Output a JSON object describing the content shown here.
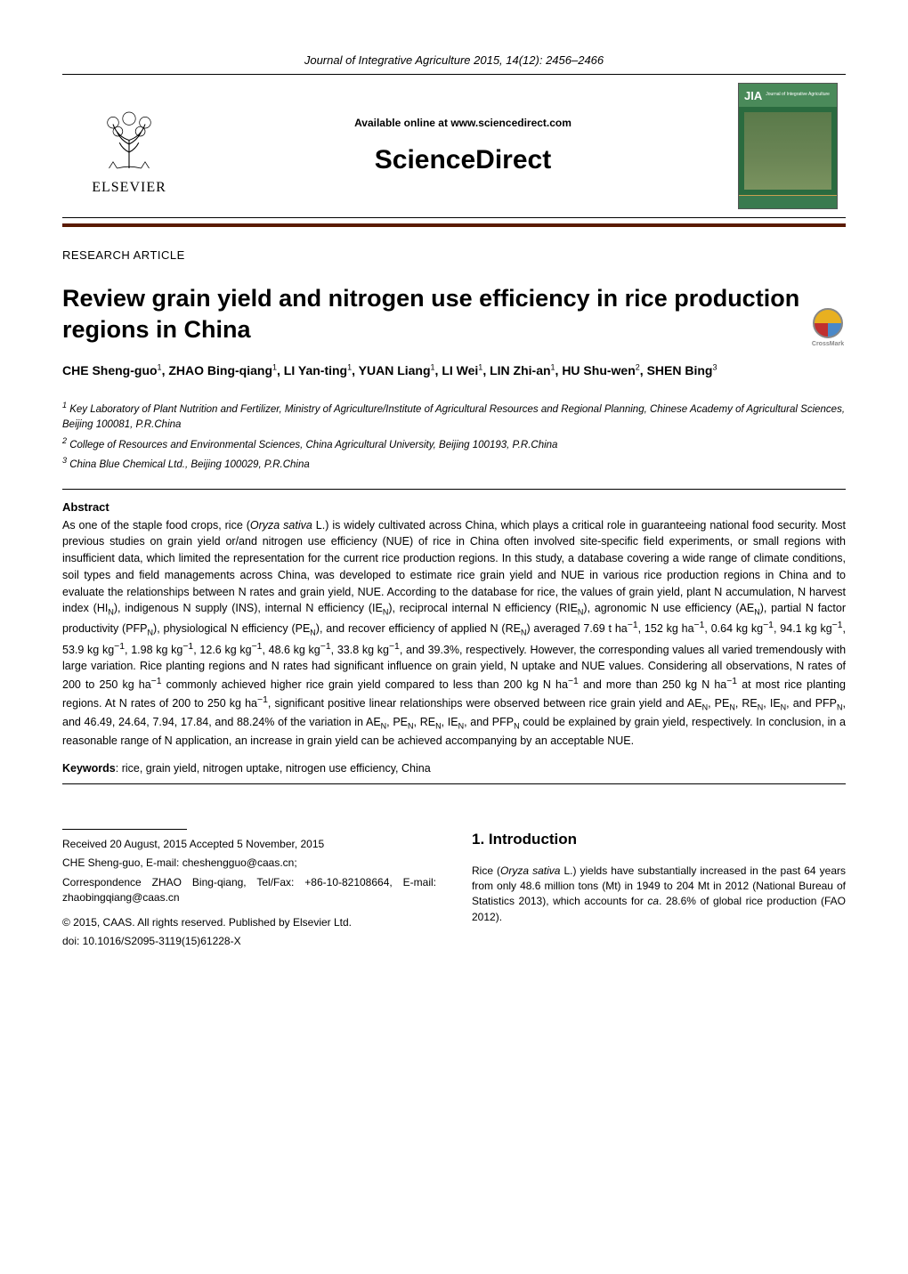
{
  "journal_line": "Journal of Integrative Agriculture  2015, 14(12): 2456–2466",
  "header": {
    "available_online": "Available online at www.sciencedirect.com",
    "sciencedirect": "ScienceDirect",
    "elsevier": "ELSEVIER",
    "jia_logo": "JIA",
    "jia_sub": "Journal of Integrative Agriculture"
  },
  "article_type": "RESEARCH  ARTICLE",
  "title": "Review grain yield and nitrogen use efficiency in rice production regions in China",
  "crossmark_label": "CrossMark",
  "authors_html": "CHE Sheng-guo<sup>1</sup>, ZHAO Bing-qiang<sup>1</sup>, LI Yan-ting<sup>1</sup>, YUAN Liang<sup>1</sup>, LI Wei<sup>1</sup>, LIN Zhi-an<sup>1</sup>, HU Shu-wen<sup>2</sup>, SHEN Bing<sup>3</sup>",
  "affiliations": [
    "<sup>1</sup> Key Laboratory of Plant Nutrition and Fertilizer, Ministry of Agriculture/Institute of Agricultural Resources and Regional Planning, Chinese Academy of Agricultural Sciences, Beijing 100081, P.R.China",
    "<sup>2</sup> College of Resources and Environmental Sciences, China Agricultural University, Beijing 100193, P.R.China",
    "<sup>3</sup> China Blue Chemical Ltd., Beijing 100029, P.R.China"
  ],
  "abstract_head": "Abstract",
  "abstract_body": "As one of the staple food crops, rice (<i>Oryza sativa</i> L.) is widely cultivated across China, which plays a critical role in guaranteeing national food security.  Most previous studies on grain yield or/and nitrogen use efficiency (NUE) of rice in China often involved site-specific field experiments, or small regions with insufficient data, which limited the representation for the current rice production regions.  In this study, a database covering a wide range of climate conditions, soil types and field managements across China, was developed to estimate rice grain yield and NUE in various rice production regions in China and to evaluate the relationships between N rates and grain yield, NUE.  According to the database for rice, the values of grain yield, plant N accumulation, N harvest index (HI<sub>N</sub>), indigenous N supply (INS), internal N efficiency (IE<sub>N</sub>), reciprocal internal N efficiency (RIE<sub>N</sub>), agronomic N use efficiency (AE<sub>N</sub>), partial N factor productivity (PFP<sub>N</sub>), physiological N efficiency (PE<sub>N</sub>), and recover efficiency of applied N (RE<sub>N</sub>) averaged 7.69 t ha<sup>−1</sup>, 152 kg ha<sup>−1</sup>, 0.64 kg kg<sup>−1</sup>, 94.1 kg kg<sup>−1</sup>, 53.9 kg kg<sup>−1</sup>, 1.98 kg kg<sup>−1</sup>, 12.6 kg kg<sup>−1</sup>, 48.6 kg kg<sup>−1</sup>, 33.8 kg kg<sup>−1</sup>, and 39.3%, respectively.  However, the corresponding values all varied tremendously with large variation. Rice planting regions and N rates had significant influence on grain yield, N uptake and NUE values.  Considering all observations, N rates of 200 to 250 kg ha<sup>−1</sup> commonly achieved higher rice grain yield compared to less than 200 kg N ha<sup>−1</sup> and more than 250 kg N ha<sup>−1</sup> at most rice planting regions.  At N rates of 200 to 250 kg ha<sup>−1</sup>, significant positive linear relationships were observed between rice grain yield and AE<sub>N</sub>, PE<sub>N</sub>, RE<sub>N</sub>, IE<sub>N</sub>, and PFP<sub>N</sub>, and 46.49, 24.64, 7.94, 17.84, and 88.24% of the variation in AE<sub>N</sub>, PE<sub>N</sub>, RE<sub>N</sub>, IE<sub>N</sub>, and PFP<sub>N</sub> could be explained by grain yield, respectively.  In conclusion, in a reasonable range of N application, an increase in grain yield can be achieved accompanying by an acceptable NUE.",
  "keywords_label": "Keywords",
  "keywords_text": ": rice, grain yield, nitrogen uptake, nitrogen use efficiency, China",
  "footnotes": {
    "received": "Received  20 August, 2015    Accepted  5 November, 2015",
    "che": "CHE Sheng-guo, E-mail: cheshengguo@caas.cn;",
    "corr": "Correspondence ZHAO Bing-qiang, Tel/Fax: +86-10-82108664, E-mail: zhaobingqiang@caas.cn",
    "copyright": "© 2015, CAAS. All rights reserved. Published by Elsevier Ltd.",
    "doi": "doi: 10.1016/S2095-3119(15)61228-X"
  },
  "intro_head": "1. Introduction",
  "intro_body": "Rice (<i>Oryza sativa</i> L.) yields have substantially increased in the past 64 years from only 48.6 million tons (Mt) in 1949 to 204 Mt in 2012 (National Bureau of Statistics 2013), which accounts for <i>ca</i>. 28.6% of global rice production (FAO 2012).",
  "colors": {
    "brown_rule": "#5a1a00",
    "jia_green": "#2a6b3f",
    "text": "#000000"
  }
}
